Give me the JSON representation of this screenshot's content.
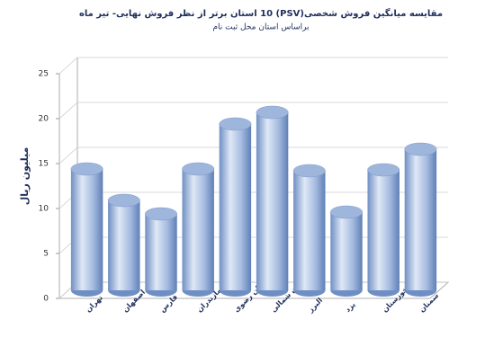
{
  "chart_data": {
    "type": "bar",
    "title": "مقایسه میانگین فروش شخصی(PSV)  10 استان برتر از نظر فروش نهایی- تیر ماه",
    "subtitle": "براساس استان محل ثبت نام",
    "y_label": "میلیون ریال",
    "categories": [
      "تهران",
      "اصفهان",
      "فارس",
      "مازندران",
      "خراسان رضوی",
      "خراسان شمالی",
      "البرز",
      "یزد",
      "خوزستان",
      "سمنان"
    ],
    "values": [
      13.5,
      10,
      8.5,
      13.5,
      18.5,
      19.8,
      13.3,
      8.7,
      13.4,
      15.7
    ],
    "color": "#9fb6dc",
    "ylim": [
      0,
      25
    ],
    "yticks": [
      0,
      5,
      10,
      15,
      20,
      25
    ],
    "grid": true
  }
}
